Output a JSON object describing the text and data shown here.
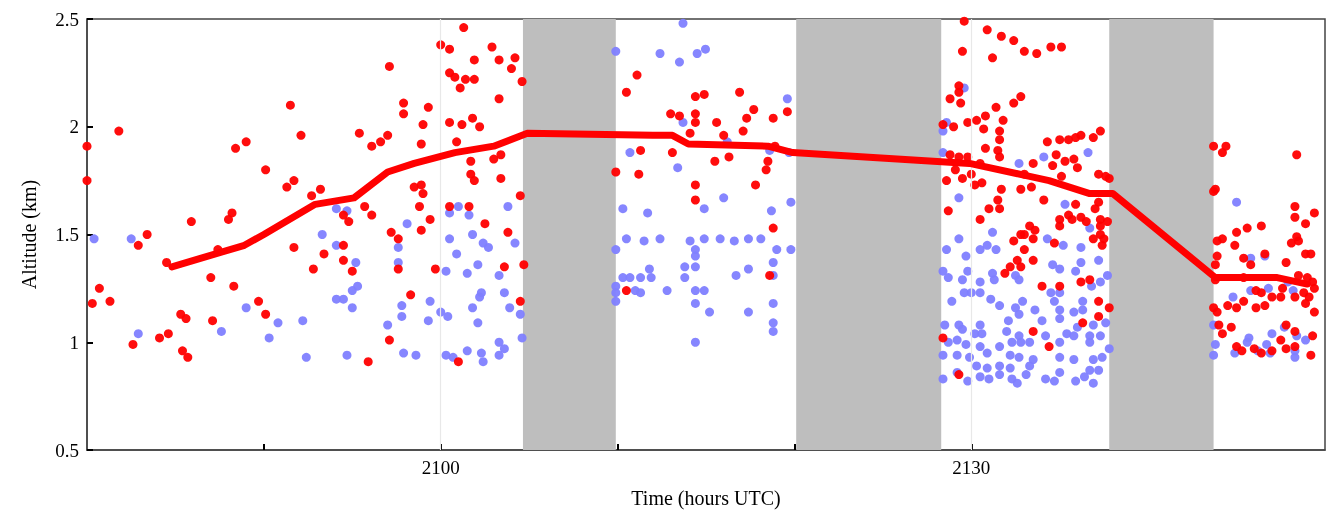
{
  "chart_data": {
    "type": "scatter",
    "xlabel": "Time (hours UTC)",
    "ylabel": "Altitude (km)",
    "xlim": [
      2080,
      2150
    ],
    "ylim": [
      0.5,
      2.5
    ],
    "xticks": [
      {
        "value": 2090,
        "label": null
      },
      2100,
      {
        "value": 2110,
        "label": null
      },
      {
        "value": 2120,
        "label": null
      },
      2130,
      {
        "value": 2140,
        "label": null
      }
    ],
    "yticks": [
      0.5,
      1,
      1.5,
      2,
      2.5
    ],
    "grid": false,
    "marker": "circle",
    "bands": [
      {
        "axis": "x",
        "from": 2104.65,
        "to": 2109.9,
        "color": "#bebebe"
      },
      {
        "axis": "x",
        "from": 2120.1,
        "to": 2128.3,
        "color": "#bebebe"
      },
      {
        "axis": "x",
        "from": 2137.8,
        "to": 2143.7,
        "color": "#bebebe"
      }
    ],
    "ref_lines": [
      {
        "axis": "x",
        "value": 2100,
        "color": "#e8e8e8"
      },
      {
        "axis": "x",
        "value": 2130,
        "color": "#e8e8e8"
      }
    ],
    "series": [
      {
        "color": "#7f7fff",
        "x": [
          2080.4,
          2082.5,
          2082.9,
          2087.6,
          2089.0,
          2090.3,
          2090.8,
          2092.2,
          2092.4,
          2093.3,
          2094.1,
          2094.7,
          2094.1,
          2095.2,
          2095.3,
          2095.0,
          2094.1,
          2094.5,
          2095.0,
          2094.7,
          2097.0,
          2097.6,
          2097.6,
          2097.8,
          2097.8,
          2097.9,
          2098.1,
          2098.6,
          2099.4,
          2099.3,
          2100.0,
          2100.4,
          2100.3,
          2100.7,
          2100.5,
          2101.0,
          2101.6,
          2100.5,
          2100.9,
          2100.3,
          2101.5,
          2101.8,
          2102.1,
          2102.4,
          2102.7,
          2102.3,
          2102.2,
          2101.8,
          2102.1,
          2101.5,
          2102.3,
          2102.4,
          2103.3,
          2103.3,
          2103.6,
          2103.3,
          2103.6,
          2103.8,
          2104.2,
          2103.9,
          2104.5,
          2104.6,
          2109.9,
          2112.4,
          2113.5,
          2114.5,
          2114.97,
          2113.7,
          2113.7,
          2110.7,
          2113.4,
          2116.2,
          2118.6,
          2119.6,
          2119.7,
          2110.3,
          2111.7,
          2114.9,
          2116.0,
          2118.7,
          2119.8,
          2110.5,
          2111.5,
          2112.4,
          2114.1,
          2114.9,
          2115.8,
          2116.6,
          2117.4,
          2118.1,
          2109.9,
          2114.4,
          2114.4,
          2119.0,
          2119.8,
          2110.3,
          2110.7,
          2111.3,
          2111.8,
          2111.9,
          2113.8,
          2113.8,
          2114.4,
          2116.7,
          2117.4,
          2118.8,
          2118.8,
          2109.9,
          2109.9,
          2109.9,
          2111.0,
          2111.3,
          2112.8,
          2114.4,
          2114.9,
          2114.4,
          2115.2,
          2117.4,
          2118.8,
          2118.8,
          2118.8,
          2114.4,
          2129.6,
          2128.4,
          2128.4,
          2128.6,
          2132.7,
          2134.1,
          2136.6,
          2129.3,
          2135.3,
          2136.7,
          2131.2,
          2129.3,
          2134.3,
          2128.6,
          2129.7,
          2130.5,
          2130.9,
          2131.4,
          2135.2,
          2136.2,
          2136.2,
          2137.2,
          2128.4,
          2128.7,
          2129.8,
          2129.5,
          2130.5,
          2131.2,
          2131.3,
          2132.5,
          2132.7,
          2134.6,
          2135.0,
          2135.9,
          2137.7,
          2137.3,
          2136.8,
          2129.6,
          2130.0,
          2130.5,
          2131.1,
          2128.9,
          2131.6,
          2132.9,
          2132.5,
          2132.7,
          2133.6,
          2134.5,
          2135.0,
          2134.7,
          2135.0,
          2135.8,
          2136.3,
          2136.3,
          2128.5,
          2129.3,
          2130.5,
          2132.1,
          2134.0,
          2135.0,
          2136.0,
          2136.9,
          2137.6,
          2129.5,
          2130.2,
          2130.6,
          2132.0,
          2132.7,
          2133.3,
          2134.2,
          2135.4,
          2135.8,
          2136.7,
          2137.3,
          2128.7,
          2129.2,
          2129.7,
          2130.5,
          2131.6,
          2132.3,
          2132.8,
          2135.0,
          2136.7,
          2137.8,
          2128.4,
          2129.2,
          2129.9,
          2130.9,
          2132.2,
          2132.7,
          2133.5,
          2135.0,
          2135.8,
          2136.9,
          2137.4,
          2130.3,
          2130.9,
          2131.6,
          2132.2,
          2133.3,
          2135.0,
          2136.7,
          2137.2,
          2128.4,
          2129.2,
          2129.8,
          2130.5,
          2131.0,
          2131.6,
          2132.3,
          2132.6,
          2133.1,
          2134.2,
          2134.7,
          2135.9,
          2136.4,
          2136.9,
          2145.0,
          2145.8,
          2146.6,
          2145.8,
          2146.8,
          2147.9,
          2148.2,
          2144.8,
          2143.7,
          2143.8,
          2143.7,
          2144.9,
          2145.7,
          2145.6,
          2146.7,
          2147.0,
          2147.7,
          2148.4,
          2148.9,
          2146.2,
          2146.9,
          2148.3,
          2148.3
        ],
        "values": [
          1.48,
          1.48,
          1.04,
          1.05,
          1.16,
          1.02,
          1.09,
          1.1,
          0.93,
          1.5,
          1.62,
          1.61,
          1.45,
          1.37,
          1.26,
          1.24,
          1.2,
          1.2,
          1.16,
          0.94,
          1.08,
          1.44,
          1.37,
          1.17,
          1.12,
          0.95,
          1.55,
          0.94,
          1.19,
          1.1,
          1.14,
          1.12,
          0.94,
          0.93,
          1.6,
          1.63,
          1.59,
          1.48,
          1.41,
          1.33,
          1.32,
          1.5,
          1.36,
          1.46,
          1.44,
          1.23,
          1.21,
          1.16,
          1.09,
          0.96,
          0.95,
          0.91,
          1.0,
          0.94,
          0.97,
          1.31,
          1.23,
          1.63,
          1.46,
          1.16,
          1.13,
          1.02,
          2.35,
          2.34,
          2.3,
          2.34,
          2.36,
          2.48,
          2.02,
          1.88,
          1.81,
          1.93,
          1.89,
          2.13,
          1.88,
          1.62,
          1.6,
          1.62,
          1.67,
          1.61,
          1.65,
          1.48,
          1.47,
          1.48,
          1.47,
          1.48,
          1.48,
          1.47,
          1.48,
          1.48,
          1.43,
          1.43,
          1.4,
          1.43,
          1.43,
          1.3,
          1.3,
          1.3,
          1.34,
          1.3,
          1.35,
          1.3,
          1.35,
          1.31,
          1.34,
          1.37,
          1.31,
          1.26,
          1.23,
          1.19,
          1.24,
          1.23,
          1.24,
          1.24,
          1.24,
          1.18,
          1.14,
          1.14,
          1.18,
          1.09,
          1.05,
          1.0,
          2.18,
          1.98,
          1.88,
          2.02,
          1.83,
          1.86,
          1.88,
          1.67,
          1.64,
          1.53,
          1.51,
          1.48,
          1.48,
          1.43,
          1.4,
          1.43,
          1.45,
          1.43,
          1.45,
          1.44,
          1.37,
          1.38,
          1.33,
          1.3,
          1.33,
          1.29,
          1.28,
          1.32,
          1.29,
          1.31,
          1.29,
          1.36,
          1.34,
          1.33,
          1.31,
          1.28,
          1.26,
          1.23,
          1.23,
          1.23,
          1.2,
          1.19,
          1.17,
          1.19,
          1.16,
          1.13,
          1.15,
          1.23,
          1.23,
          1.19,
          1.15,
          1.14,
          1.19,
          1.15,
          1.08,
          1.08,
          1.08,
          1.1,
          1.1,
          1.11,
          1.07,
          1.08,
          1.09,
          1.06,
          1.04,
          1.04,
          1.05,
          1.03,
          1.0,
          1.03,
          1.04,
          1.03,
          1.03,
          1.03,
          1.0,
          1.01,
          0.99,
          0.98,
          0.98,
          1.0,
          1.0,
          1.0,
          1.0,
          0.97,
          0.94,
          0.94,
          0.93,
          0.95,
          0.94,
          0.93,
          0.92,
          0.93,
          0.92,
          0.92,
          0.93,
          0.89,
          0.88,
          0.89,
          0.88,
          0.89,
          0.86,
          0.87,
          0.87,
          0.83,
          0.86,
          0.82,
          0.84,
          0.83,
          0.85,
          0.83,
          0.81,
          0.85,
          0.83,
          0.82,
          0.82,
          0.84,
          0.81,
          1.65,
          1.39,
          1.4,
          1.24,
          1.25,
          1.28,
          1.24,
          1.21,
          1.08,
          0.99,
          0.94,
          0.95,
          1.02,
          1.0,
          0.99,
          1.04,
          1.07,
          1.03,
          1.01,
          0.96,
          0.95,
          0.93,
          0.96
        ]
      },
      {
        "color": "#ff0000",
        "x": [
          2080.0,
          2080.0,
          2081.8,
          2080.7,
          2080.3,
          2081.3,
          2083.4,
          2082.9,
          2082.6,
          2084.5,
          2085.9,
          2084.1,
          2084.6,
          2085.3,
          2085.6,
          2085.4,
          2085.7,
          2087.0,
          2087.1,
          2087.4,
          2088.0,
          2088.2,
          2088.3,
          2088.4,
          2089.0,
          2089.7,
          2090.1,
          2090.1,
          2091.3,
          2091.7,
          2091.5,
          2092.1,
          2091.7,
          2092.7,
          2093.2,
          2092.8,
          2093.4,
          2094.5,
          2094.8,
          2094.5,
          2094.5,
          2095.0,
          2095.4,
          2095.7,
          2096.1,
          2096.1,
          2096.6,
          2097.0,
          2097.1,
          2095.9,
          2097.2,
          2097.6,
          2097.6,
          2097.1,
          2097.9,
          2097.9,
          2098.3,
          2098.5,
          2098.9,
          2099.0,
          2098.8,
          2098.9,
          2099.0,
          2099.3,
          2099.4,
          2098.9,
          2099.7,
          2100.0,
          2100.5,
          2100.5,
          2100.8,
          2101.3,
          2101.1,
          2101.4,
          2101.9,
          2101.9,
          2100.5,
          2101.2,
          2102.2,
          2101.8,
          2100.9,
          2101.7,
          2101.7,
          2101.9,
          2100.5,
          2101.6,
          2102.5,
          2101.0,
          2102.9,
          2103.3,
          2104.2,
          2104.0,
          2104.6,
          2103.3,
          2103.0,
          2103.4,
          2103.4,
          2104.5,
          2103.8,
          2103.6,
          2104.7,
          2104.5,
          2110.5,
          2111.1,
          2109.9,
          2111.2,
          2111.3,
          2110.5,
          2113.0,
          2113.5,
          2113.1,
          2114.4,
          2114.9,
          2114.4,
          2114.4,
          2114.1,
          2114.4,
          2114.4,
          2115.6,
          2116.0,
          2115.5,
          2116.3,
          2116.9,
          2117.3,
          2117.7,
          2117.1,
          2118.8,
          2118.5,
          2118.4,
          2117.8,
          2118.8,
          2118.6,
          2119.6,
          2118.9,
          2129.6,
          2130.9,
          2131.7,
          2132.4,
          2133.0,
          2133.7,
          2134.5,
          2135.1,
          2129.5,
          2131.2,
          2129.3,
          2129.3,
          2129.4,
          2128.8,
          2131.4,
          2132.4,
          2132.8,
          2131.8,
          2130.8,
          2130.3,
          2129.8,
          2129.0,
          2128.4,
          2130.7,
          2131.6,
          2131.6,
          2130.8,
          2131.5,
          2131.6,
          2128.8,
          2129.3,
          2129.8,
          2129.1,
          2128.6,
          2129.5,
          2130.0,
          2130.6,
          2130.2,
          2130.5,
          2128.7,
          2131.7,
          2132.8,
          2131.5,
          2131.6,
          2131.0,
          2130.5,
          2133.5,
          2133.0,
          2133.4,
          2134.1,
          2134.3,
          2135.0,
          2135.5,
          2135.9,
          2136.2,
          2136.9,
          2137.3,
          2134.8,
          2135.3,
          2135.8,
          2136.0,
          2134.6,
          2135.1,
          2137.2,
          2137.6,
          2137.8,
          2135.9,
          2137.2,
          2137.0,
          2135.0,
          2135.0,
          2135.5,
          2135.7,
          2136.2,
          2136.5,
          2137.3,
          2137.7,
          2137.3,
          2133.3,
          2133.6,
          2133.5,
          2132.8,
          2133.0,
          2132.4,
          2137.3,
          2137.5,
          2136.9,
          2137.4,
          2134.7,
          2133.0,
          2132.6,
          2133.5,
          2132.2,
          2132.8,
          2131.9,
          2136.2,
          2136.7,
          2134.0,
          2135.0,
          2137.2,
          2137.8,
          2137.2,
          2136.3,
          2133.5,
          2128.4,
          2134.4,
          2129.3,
          2143.7,
          2144.4,
          2144.2,
          2143.8,
          2143.7,
          2148.4,
          2148.3,
          2149.4,
          2148.3,
          2148.9,
          2146.4,
          2145.6,
          2145.0,
          2143.9,
          2144.2,
          2144.9,
          2148.1,
          2148.4,
          2148.5,
          2148.9,
          2149.2,
          2143.9,
          2145.4,
          2146.6,
          2147.8,
          2145.8,
          2143.8,
          2143.8,
          2145.4,
          2148.5,
          2149.0,
          2149.3,
          2149.4,
          2146.1,
          2146.4,
          2147.0,
          2147.5,
          2148.3,
          2148.8,
          2149.1,
          2147.6,
          2145.4,
          2145.0,
          2144.5,
          2143.7,
          2143.9,
          2146.1,
          2146.6,
          2148.9,
          2149.4,
          2144.0,
          2144.7,
          2144.2,
          2147.8,
          2148.3,
          2147.5,
          2149.3,
          2145.0,
          2145.3,
          2146.0,
          2146.4,
          2147.0,
          2147.8,
          2148.3,
          2149.2
        ],
        "values": [
          1.91,
          1.75,
          1.98,
          1.25,
          1.18,
          1.19,
          1.5,
          1.45,
          0.99,
          1.37,
          1.56,
          1.02,
          1.04,
          1.13,
          1.11,
          0.96,
          0.93,
          1.3,
          1.1,
          1.43,
          1.57,
          1.6,
          1.26,
          1.9,
          1.93,
          1.19,
          1.8,
          1.13,
          1.72,
          1.75,
          2.1,
          1.96,
          1.44,
          1.68,
          1.71,
          1.34,
          1.41,
          1.59,
          1.56,
          1.45,
          1.38,
          1.33,
          1.97,
          1.63,
          1.59,
          1.91,
          1.93,
          1.96,
          2.28,
          0.91,
          1.51,
          1.48,
          1.34,
          1.01,
          2.11,
          2.06,
          1.22,
          1.72,
          1.73,
          1.69,
          1.63,
          1.92,
          2.01,
          2.09,
          1.57,
          1.52,
          1.34,
          2.38,
          2.36,
          2.25,
          2.23,
          2.46,
          2.18,
          2.22,
          2.22,
          2.31,
          2.02,
          2.01,
          2.0,
          2.04,
          1.93,
          1.84,
          1.78,
          1.75,
          1.63,
          1.63,
          1.55,
          0.91,
          2.37,
          2.31,
          2.32,
          2.27,
          2.21,
          2.13,
          1.85,
          1.87,
          1.76,
          1.68,
          1.51,
          1.35,
          1.36,
          1.19,
          2.16,
          2.24,
          1.79,
          1.78,
          1.89,
          1.24,
          2.06,
          2.05,
          1.88,
          2.14,
          2.15,
          2.06,
          2.02,
          1.97,
          1.73,
          1.66,
          2.02,
          1.96,
          1.84,
          1.86,
          2.16,
          2.04,
          2.08,
          1.98,
          2.04,
          1.84,
          1.8,
          1.73,
          1.53,
          1.31,
          2.07,
          1.91,
          2.49,
          2.45,
          2.42,
          2.4,
          2.35,
          2.34,
          2.37,
          2.37,
          2.35,
          2.32,
          2.19,
          2.16,
          2.11,
          2.13,
          2.09,
          2.11,
          2.14,
          2.03,
          2.05,
          2.03,
          2.02,
          2.0,
          2.01,
          1.99,
          1.98,
          1.94,
          1.9,
          1.89,
          1.86,
          1.87,
          1.86,
          1.86,
          1.8,
          1.75,
          1.76,
          1.78,
          1.74,
          1.73,
          1.83,
          1.61,
          1.71,
          1.71,
          1.66,
          1.62,
          1.62,
          1.57,
          1.83,
          1.78,
          1.72,
          1.66,
          1.93,
          1.94,
          1.94,
          1.95,
          1.96,
          1.95,
          1.98,
          1.87,
          1.84,
          1.85,
          1.81,
          1.82,
          1.77,
          1.78,
          1.77,
          1.76,
          1.64,
          1.65,
          1.62,
          1.57,
          1.54,
          1.59,
          1.57,
          1.58,
          1.56,
          1.57,
          1.56,
          1.54,
          1.54,
          1.52,
          1.48,
          1.5,
          1.5,
          1.47,
          1.5,
          1.48,
          1.48,
          1.45,
          1.46,
          1.43,
          1.38,
          1.38,
          1.35,
          1.35,
          1.32,
          1.28,
          1.29,
          1.26,
          1.26,
          1.19,
          1.16,
          1.12,
          1.09,
          1.05,
          1.02,
          0.98,
          0.85,
          1.91,
          1.91,
          1.88,
          1.71,
          1.7,
          1.87,
          1.63,
          1.6,
          1.58,
          1.55,
          1.54,
          1.53,
          1.51,
          1.47,
          1.48,
          1.45,
          1.46,
          1.49,
          1.47,
          1.41,
          1.41,
          1.4,
          1.39,
          1.41,
          1.37,
          1.36,
          1.36,
          1.29,
          1.3,
          1.31,
          1.3,
          1.28,
          1.25,
          1.24,
          1.23,
          1.21,
          1.21,
          1.21,
          1.23,
          1.21,
          1.25,
          1.19,
          1.16,
          1.17,
          1.16,
          1.14,
          1.16,
          1.17,
          1.18,
          1.14,
          1.08,
          1.07,
          1.04,
          1.08,
          1.05,
          1.01,
          1.03,
          0.98,
          0.96,
          0.97,
          0.95,
          0.96,
          0.97,
          0.98,
          0.94
        ]
      },
      {
        "type": "line",
        "color": "#ff0000",
        "marker": "none",
        "line_style": "solid",
        "x": [
          2084.8,
          2088.9,
          2090.0,
          2092.9,
          2095.1,
          2097.0,
          2098.5,
          2100.8,
          2103.0,
          2104.9,
          2112.0,
          2113.1,
          2114.0,
          2118.5,
          2119.9,
          2129.9,
          2133.3,
          2134.4,
          2136.7,
          2138.0,
          2143.8,
          2147.3,
          2149.0
        ],
        "values": [
          1.35,
          1.45,
          1.5,
          1.64,
          1.67,
          1.79,
          1.83,
          1.88,
          1.91,
          1.97,
          1.96,
          1.96,
          1.92,
          1.91,
          1.88,
          1.83,
          1.77,
          1.75,
          1.69,
          1.69,
          1.3,
          1.3,
          1.27
        ]
      }
    ]
  }
}
